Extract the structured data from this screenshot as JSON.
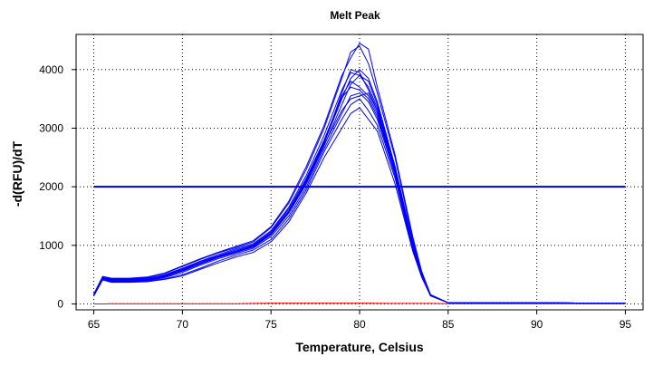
{
  "chart_data": {
    "type": "line",
    "title": "Melt Peak",
    "xlabel": "Temperature, Celsius",
    "ylabel": "-d(RFU)/dT",
    "xlim": [
      64,
      96
    ],
    "ylim": [
      -100,
      4600
    ],
    "xticks": [
      65,
      70,
      75,
      80,
      85,
      90,
      95
    ],
    "yticks": [
      0,
      1000,
      2000,
      3000,
      4000
    ],
    "grid": true,
    "grid_style": "dotted",
    "colors": {
      "sample": "#0000ff",
      "threshold": "#0000cc",
      "negative": "#ff0000"
    },
    "threshold": {
      "y": 2000,
      "x_range": [
        65,
        95
      ]
    },
    "x": [
      65,
      65.5,
      66,
      67,
      68,
      69,
      70,
      71,
      72,
      73,
      74,
      75,
      76,
      77,
      78,
      79,
      79.5,
      80,
      80.5,
      81,
      82,
      83,
      83.5,
      84,
      85,
      90,
      95
    ],
    "series": [
      {
        "values": [
          150,
          440,
          410,
          410,
          420,
          470,
          560,
          680,
          790,
          880,
          970,
          1180,
          1550,
          2050,
          2700,
          3400,
          3750,
          3900,
          3800,
          3400,
          2300,
          1000,
          500,
          150,
          20,
          20,
          10
        ]
      },
      {
        "values": [
          170,
          460,
          430,
          430,
          450,
          520,
          640,
          760,
          870,
          960,
          1060,
          1300,
          1720,
          2300,
          3000,
          3850,
          4300,
          4400,
          4100,
          3600,
          2500,
          1100,
          550,
          160,
          20,
          20,
          10
        ]
      },
      {
        "values": [
          140,
          420,
          390,
          390,
          400,
          450,
          540,
          660,
          770,
          860,
          950,
          1150,
          1500,
          2000,
          2650,
          3250,
          3550,
          3600,
          3450,
          3150,
          2200,
          950,
          480,
          140,
          20,
          20,
          10
        ]
      },
      {
        "values": [
          160,
          440,
          400,
          400,
          410,
          460,
          580,
          700,
          800,
          900,
          990,
          1200,
          1580,
          2100,
          2750,
          3500,
          3850,
          4000,
          3850,
          3450,
          2350,
          1050,
          520,
          150,
          20,
          20,
          10
        ]
      },
      {
        "values": [
          150,
          430,
          380,
          380,
          390,
          430,
          500,
          610,
          730,
          830,
          920,
          1100,
          1450,
          1950,
          2600,
          3150,
          3400,
          3500,
          3300,
          3050,
          2150,
          920,
          470,
          140,
          20,
          20,
          10
        ]
      },
      {
        "values": [
          160,
          450,
          420,
          420,
          440,
          490,
          600,
          720,
          820,
          920,
          1010,
          1230,
          1620,
          2150,
          2800,
          3550,
          3800,
          3700,
          3550,
          3250,
          2250,
          1000,
          500,
          150,
          20,
          20,
          10
        ]
      },
      {
        "values": [
          170,
          470,
          440,
          440,
          460,
          530,
          650,
          770,
          880,
          980,
          1080,
          1320,
          1750,
          2350,
          3050,
          3900,
          4200,
          4450,
          4350,
          3700,
          2550,
          1150,
          560,
          160,
          20,
          20,
          10
        ]
      },
      {
        "values": [
          140,
          410,
          370,
          370,
          380,
          420,
          480,
          590,
          700,
          800,
          880,
          1060,
          1400,
          1900,
          2500,
          3000,
          3250,
          3350,
          3150,
          2950,
          2050,
          900,
          460,
          140,
          20,
          20,
          10
        ]
      },
      {
        "values": [
          150,
          430,
          400,
          400,
          420,
          480,
          590,
          700,
          810,
          900,
          1000,
          1210,
          1590,
          2120,
          2780,
          3520,
          3700,
          3650,
          3500,
          3200,
          2250,
          980,
          490,
          150,
          20,
          20,
          10
        ]
      },
      {
        "values": [
          160,
          450,
          410,
          410,
          430,
          500,
          610,
          730,
          840,
          940,
          1030,
          1250,
          1650,
          2200,
          2880,
          3650,
          3950,
          3900,
          3700,
          3350,
          2350,
          1030,
          510,
          150,
          20,
          20,
          10
        ]
      },
      {
        "values": [
          150,
          440,
          400,
          400,
          410,
          460,
          570,
          690,
          800,
          890,
          980,
          1190,
          1560,
          2080,
          2720,
          3300,
          3500,
          3550,
          3600,
          3300,
          2300,
          1000,
          500,
          150,
          20,
          20,
          10
        ]
      },
      {
        "values": [
          155,
          445,
          405,
          405,
          415,
          465,
          575,
          695,
          805,
          895,
          985,
          1195,
          1570,
          2090,
          2740,
          3600,
          4000,
          3950,
          3650,
          3300,
          2300,
          1000,
          500,
          150,
          20,
          20,
          10
        ]
      }
    ],
    "negative_series": {
      "values": [
        0,
        0,
        5,
        5,
        5,
        5,
        5,
        5,
        5,
        5,
        10,
        15,
        15,
        15,
        15,
        15,
        15,
        15,
        15,
        12,
        10,
        10,
        10,
        10,
        5,
        5,
        5
      ]
    }
  }
}
